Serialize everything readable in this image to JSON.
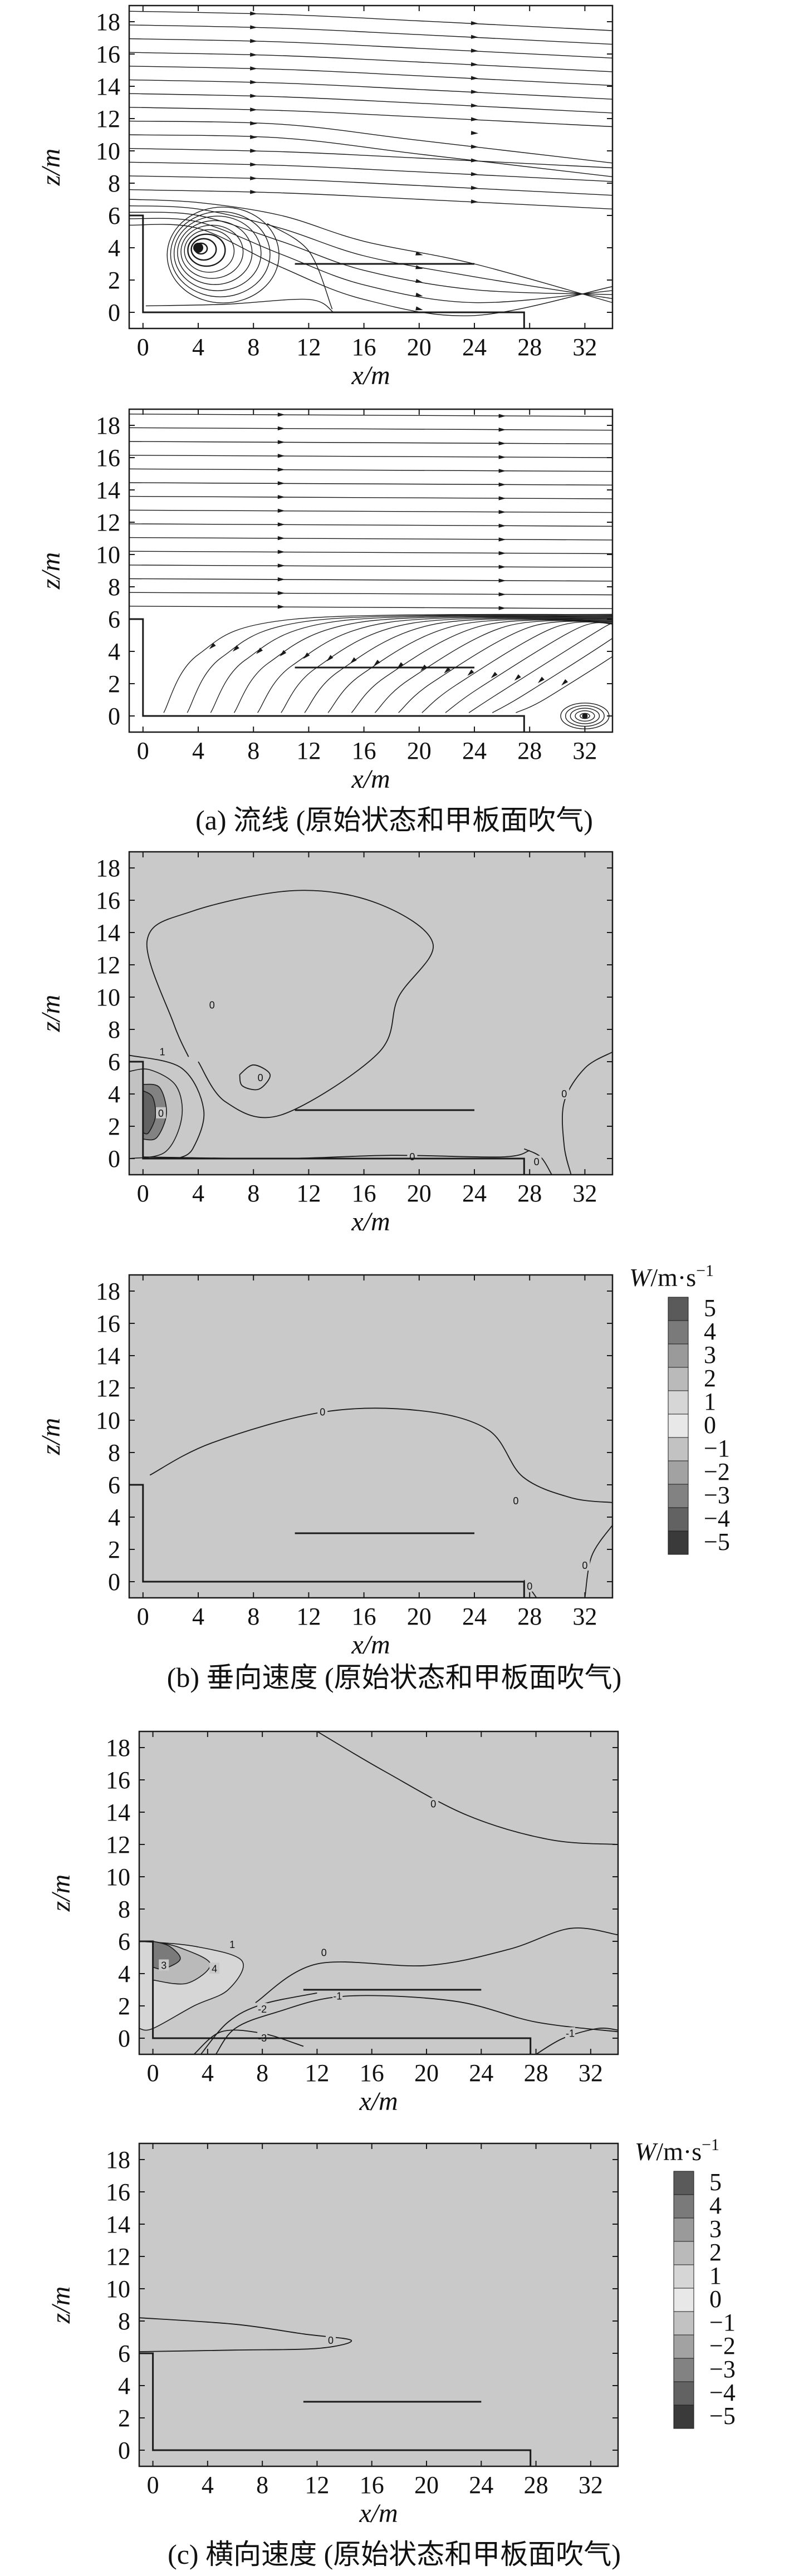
{
  "chart_data": [
    {
      "id": "a1",
      "type": "streamline",
      "xlabel": "x/m",
      "ylabel": "z/m",
      "xlim": [
        -1,
        34
      ],
      "ylim": [
        -1,
        19
      ],
      "xticks": [
        0,
        4,
        8,
        12,
        16,
        20,
        24,
        28,
        32
      ],
      "yticks": [
        0,
        2,
        4,
        6,
        8,
        10,
        12,
        14,
        16,
        18
      ],
      "vortex_center": [
        4,
        4
      ],
      "deck_line": {
        "x": [
          11,
          24
        ],
        "z": 3
      }
    },
    {
      "id": "a2",
      "type": "streamline",
      "xlabel": "x/m",
      "ylabel": "z/m",
      "xlim": [
        -1,
        34
      ],
      "ylim": [
        -1,
        19
      ],
      "xticks": [
        0,
        4,
        8,
        12,
        16,
        20,
        24,
        28,
        32
      ],
      "yticks": [
        0,
        2,
        4,
        6,
        8,
        10,
        12,
        14,
        16,
        18
      ],
      "vortex_center": [
        32,
        0
      ],
      "deck_line": {
        "x": [
          11,
          24
        ],
        "z": 3
      }
    },
    {
      "id": "b1",
      "type": "contour",
      "xlabel": "x/m",
      "ylabel": "z/m",
      "xlim": [
        -1,
        34
      ],
      "ylim": [
        -1,
        19
      ],
      "xticks": [
        0,
        4,
        8,
        12,
        16,
        20,
        24,
        28,
        32
      ],
      "yticks": [
        0,
        2,
        4,
        6,
        8,
        10,
        12,
        14,
        16,
        18
      ],
      "contour_labels": [
        {
          "text": "0",
          "x": 5,
          "z": 9.5
        },
        {
          "text": "0",
          "x": 8.5,
          "z": 5
        },
        {
          "text": "0",
          "x": 19.5,
          "z": 0.1
        },
        {
          "text": "0",
          "x": 30.5,
          "z": 4
        },
        {
          "text": "1",
          "x": 1.4,
          "z": 6.6
        },
        {
          "text": "0",
          "x": 1.3,
          "z": 2.8
        },
        {
          "text": "0",
          "x": 28.5,
          "z": -0.2
        }
      ],
      "deck_line": {
        "x": [
          11,
          24
        ],
        "z": 3
      }
    },
    {
      "id": "b2",
      "type": "contour",
      "xlabel": "x/m",
      "ylabel": "z/m",
      "xlim": [
        -1,
        34
      ],
      "ylim": [
        -1,
        19
      ],
      "xticks": [
        0,
        4,
        8,
        12,
        16,
        20,
        24,
        28,
        32
      ],
      "yticks": [
        0,
        2,
        4,
        6,
        8,
        10,
        12,
        14,
        16,
        18
      ],
      "contour_labels": [
        {
          "text": "0",
          "x": 13,
          "z": 10.5
        },
        {
          "text": "0",
          "x": 27,
          "z": 5
        },
        {
          "text": "0",
          "x": 32,
          "z": 1
        },
        {
          "text": "0",
          "x": 28,
          "z": -0.3
        }
      ],
      "deck_line": {
        "x": [
          11,
          24
        ],
        "z": 3
      }
    },
    {
      "id": "c1",
      "type": "contour",
      "xlabel": "x/m",
      "ylabel": "z/m",
      "xlim": [
        -1,
        34
      ],
      "ylim": [
        -1,
        19
      ],
      "xticks": [
        0,
        4,
        8,
        12,
        16,
        20,
        24,
        28,
        32
      ],
      "yticks": [
        0,
        2,
        4,
        6,
        8,
        10,
        12,
        14,
        16,
        18
      ],
      "contour_labels": [
        {
          "text": "0",
          "x": 20.5,
          "z": 14.5
        },
        {
          "text": "1",
          "x": 5.8,
          "z": 5.8
        },
        {
          "text": "3",
          "x": 0.8,
          "z": 4.5
        },
        {
          "text": "4",
          "x": 4.5,
          "z": 4.3
        },
        {
          "text": "0",
          "x": 12.5,
          "z": 5.3
        },
        {
          "text": "-1",
          "x": 13.5,
          "z": 2.6
        },
        {
          "text": "-2",
          "x": 8,
          "z": 1.8
        },
        {
          "text": "-3",
          "x": 8,
          "z": 0
        },
        {
          "text": "-1",
          "x": 30.5,
          "z": 0.3
        }
      ],
      "deck_line": {
        "x": [
          11,
          24
        ],
        "z": 3
      }
    },
    {
      "id": "c2",
      "type": "contour",
      "xlabel": "x/m",
      "ylabel": "z/m",
      "xlim": [
        -1,
        34
      ],
      "ylim": [
        -1,
        19
      ],
      "xticks": [
        0,
        4,
        8,
        12,
        16,
        20,
        24,
        28,
        32
      ],
      "yticks": [
        0,
        2,
        4,
        6,
        8,
        10,
        12,
        14,
        16,
        18
      ],
      "contour_labels": [
        {
          "text": "0",
          "x": 13,
          "z": 6.8
        }
      ],
      "deck_line": {
        "x": [
          11,
          24
        ],
        "z": 3
      }
    }
  ],
  "legend": {
    "title": "W/m·s",
    "superscript": "−1",
    "levels": [
      "5",
      "4",
      "3",
      "2",
      "1",
      "0",
      "−1",
      "−2",
      "−3",
      "−4",
      "−5"
    ],
    "colors": [
      "#5a5a5a",
      "#7a7a7a",
      "#9a9a9a",
      "#bababa",
      "#d6d6d6",
      "#e8e8e8",
      "#c2c2c2",
      "#a2a2a2",
      "#828282",
      "#626262",
      "#3a3a3a"
    ]
  },
  "captions": {
    "a": "(a) 流线 (原始状态和甲板面吹气)",
    "b": "(b) 垂向速度 (原始状态和甲板面吹气)",
    "c": "(c) 横向速度 (原始状态和甲板面吹气)"
  },
  "colors": {
    "field": "#c9c9c9",
    "line": "#1a1a1a"
  }
}
